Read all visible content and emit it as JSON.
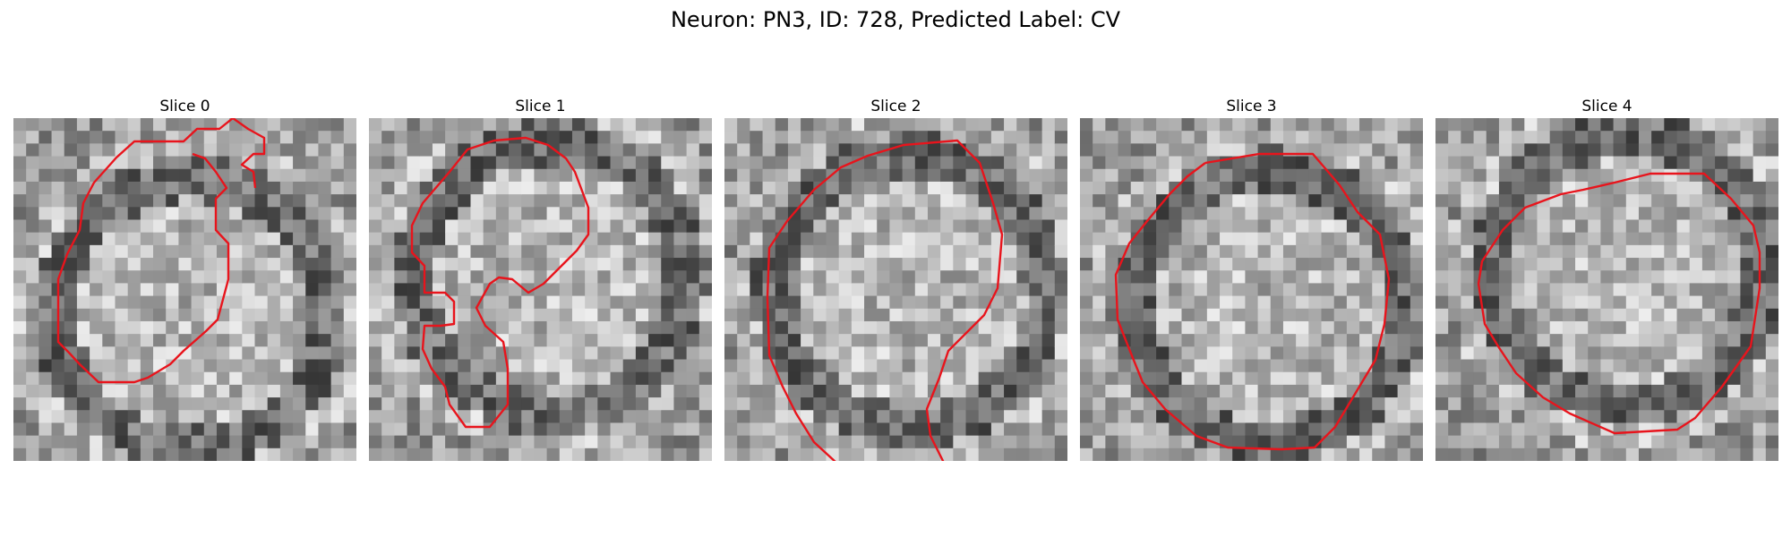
{
  "figure": {
    "title": "Neuron: PN3, ID: 728, Predicted Label: CV"
  },
  "panels": [
    {
      "title": "Slice 0"
    },
    {
      "title": "Slice 1"
    },
    {
      "title": "Slice 2"
    },
    {
      "title": "Slice 3"
    },
    {
      "title": "Slice 4"
    }
  ],
  "colors": {
    "contour": "#e8141c",
    "background": "#ffffff"
  }
}
